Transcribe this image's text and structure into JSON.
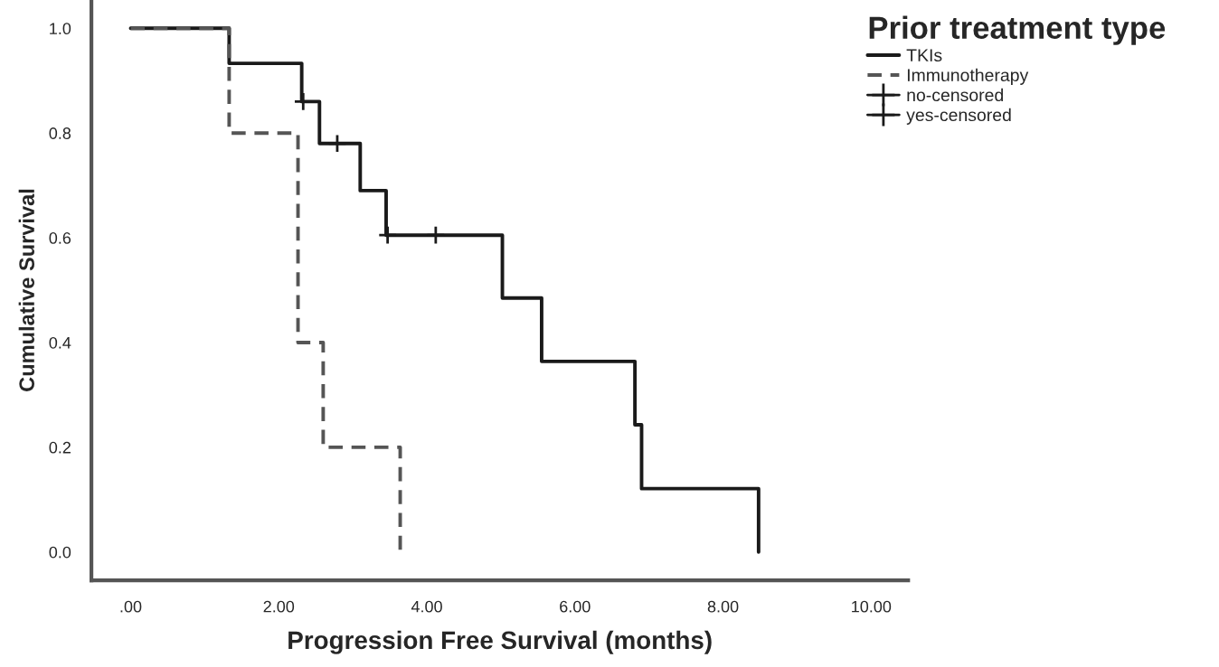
{
  "chart_data": {
    "type": "step",
    "xlabel": "Progression Free Survival (months)",
    "ylabel": "Cumulative Survival",
    "legend_title": "Prior treatment type",
    "series": [
      {
        "name": "TKIs",
        "color": "#1a1a1a",
        "line_style": "solid",
        "x": [
          0,
          1.33,
          2.31,
          2.55,
          3.1,
          3.45,
          5.02,
          5.55,
          6.81,
          6.9,
          8.48
        ],
        "values": [
          1.0,
          0.933,
          0.86,
          0.78,
          0.69,
          0.605,
          0.485,
          0.364,
          0.243,
          0.121,
          0.0
        ]
      },
      {
        "name": "Immunotherapy",
        "color": "#555555",
        "line_style": "dashed",
        "x": [
          0,
          1.33,
          2.26,
          2.6,
          3.64
        ],
        "values": [
          1.0,
          0.8,
          0.4,
          0.2,
          0.0
        ]
      },
      {
        "name": "no-censored",
        "type": "scatter",
        "marker": "cross",
        "color": "#1a1a1a"
      },
      {
        "name": "yes-censored",
        "type": "scatter",
        "marker": "cross",
        "color": "#1a1a1a",
        "x": [
          2.33,
          2.79,
          3.47,
          4.12
        ],
        "values": [
          0.86,
          0.78,
          0.605,
          0.605
        ]
      }
    ],
    "xlim": [
      -0.53,
      10.5
    ],
    "ylim": [
      -0.054,
      1.054
    ],
    "xticks": [
      {
        "value": 0,
        "label": ".00"
      },
      {
        "value": 2,
        "label": "2.00"
      },
      {
        "value": 4,
        "label": "4.00"
      },
      {
        "value": 6,
        "label": "6.00"
      },
      {
        "value": 8,
        "label": "8.00"
      },
      {
        "value": 10,
        "label": "10.00"
      }
    ],
    "yticks": [
      {
        "value": 0,
        "label": "0.0"
      },
      {
        "value": 0.2,
        "label": "0.2"
      },
      {
        "value": 0.4,
        "label": "0.4"
      },
      {
        "value": 0.6,
        "label": "0.6"
      },
      {
        "value": 0.8,
        "label": "0.8"
      },
      {
        "value": 1.0,
        "label": "1.0"
      }
    ],
    "legend": "top right",
    "grid": false
  }
}
